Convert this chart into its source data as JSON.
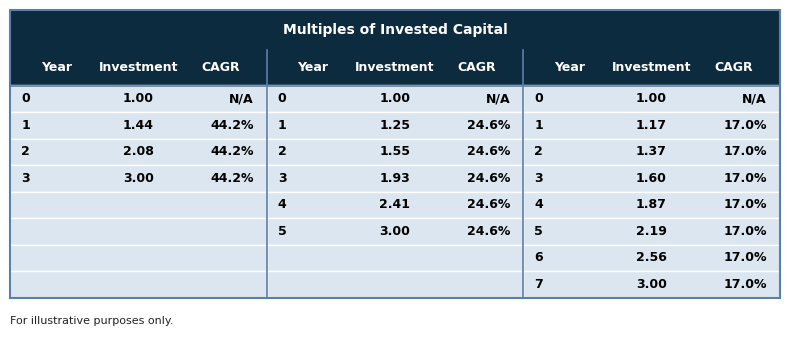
{
  "title": "Multiples of Invested Capital",
  "title_bg": "#0d2b3e",
  "header_bg": "#0d2b3e",
  "row_bg": "#dce6f0",
  "divider_color": "#5a7fa8",
  "footer_text": "For illustrative purposes only.",
  "columns": [
    [
      "Year",
      "Investment",
      "CAGR"
    ],
    [
      "Year",
      "Investment",
      "CAGR"
    ],
    [
      "Year",
      "Investment",
      "CAGR"
    ]
  ],
  "sections": [
    {
      "rows": [
        [
          "0",
          "1.00",
          "N/A"
        ],
        [
          "1",
          "1.44",
          "44.2%"
        ],
        [
          "2",
          "2.08",
          "44.2%"
        ],
        [
          "3",
          "3.00",
          "44.2%"
        ]
      ]
    },
    {
      "rows": [
        [
          "0",
          "1.00",
          "N/A"
        ],
        [
          "1",
          "1.25",
          "24.6%"
        ],
        [
          "2",
          "1.55",
          "24.6%"
        ],
        [
          "3",
          "1.93",
          "24.6%"
        ],
        [
          "4",
          "2.41",
          "24.6%"
        ],
        [
          "5",
          "3.00",
          "24.6%"
        ]
      ]
    },
    {
      "rows": [
        [
          "0",
          "1.00",
          "N/A"
        ],
        [
          "1",
          "1.17",
          "17.0%"
        ],
        [
          "2",
          "1.37",
          "17.0%"
        ],
        [
          "3",
          "1.60",
          "17.0%"
        ],
        [
          "4",
          "1.87",
          "17.0%"
        ],
        [
          "5",
          "2.19",
          "17.0%"
        ],
        [
          "6",
          "2.56",
          "17.0%"
        ],
        [
          "7",
          "3.00",
          "17.0%"
        ]
      ]
    }
  ],
  "figsize": [
    7.9,
    3.42
  ],
  "dpi": 100,
  "n_data_rows": 8,
  "title_fontsize": 10,
  "header_fontsize": 9,
  "data_fontsize": 9,
  "footer_fontsize": 8
}
